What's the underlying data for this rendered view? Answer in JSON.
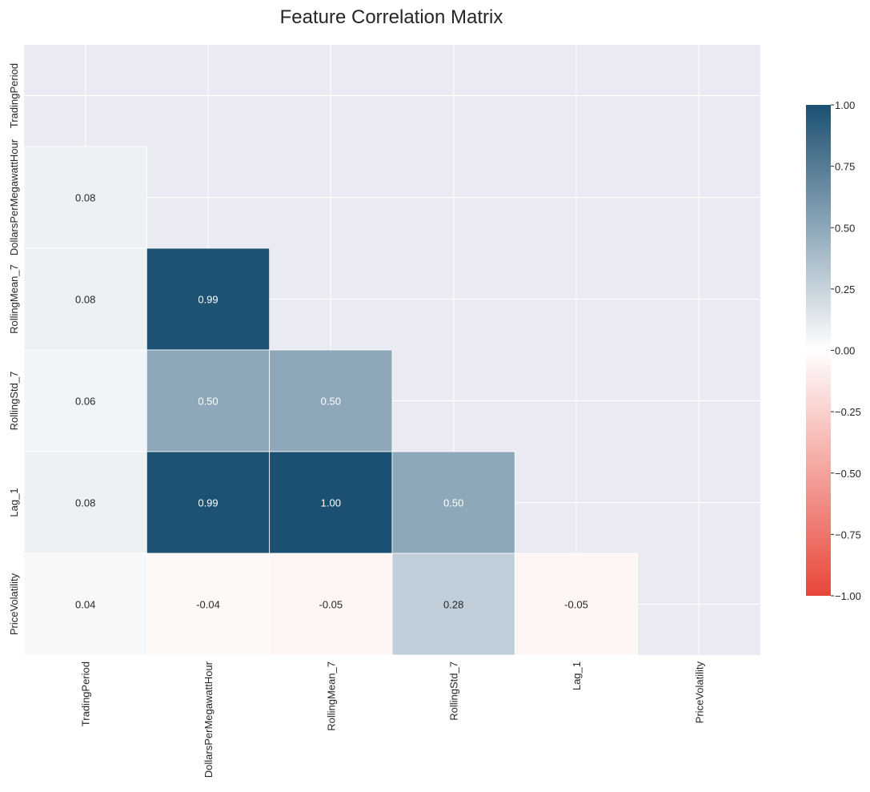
{
  "chart_data": {
    "type": "heatmap",
    "title": "Feature Correlation Matrix",
    "variables": [
      "TradingPeriod",
      "DollarsPerMegawattHour",
      "RollingMean_7",
      "RollingStd_7",
      "Lag_1",
      "PriceVolatility"
    ],
    "mask": "upper-triangle-including-diagonal",
    "cells": [
      {
        "row": "DollarsPerMegawattHour",
        "col": "TradingPeriod",
        "value": 0.08,
        "label": "0.08"
      },
      {
        "row": "RollingMean_7",
        "col": "TradingPeriod",
        "value": 0.08,
        "label": "0.08"
      },
      {
        "row": "RollingMean_7",
        "col": "DollarsPerMegawattHour",
        "value": 0.99,
        "label": "0.99"
      },
      {
        "row": "RollingStd_7",
        "col": "TradingPeriod",
        "value": 0.06,
        "label": "0.06"
      },
      {
        "row": "RollingStd_7",
        "col": "DollarsPerMegawattHour",
        "value": 0.5,
        "label": "0.50"
      },
      {
        "row": "RollingStd_7",
        "col": "RollingMean_7",
        "value": 0.5,
        "label": "0.50"
      },
      {
        "row": "Lag_1",
        "col": "TradingPeriod",
        "value": 0.08,
        "label": "0.08"
      },
      {
        "row": "Lag_1",
        "col": "DollarsPerMegawattHour",
        "value": 0.99,
        "label": "0.99"
      },
      {
        "row": "Lag_1",
        "col": "RollingMean_7",
        "value": 1.0,
        "label": "1.00"
      },
      {
        "row": "Lag_1",
        "col": "RollingStd_7",
        "value": 0.5,
        "label": "0.50"
      },
      {
        "row": "PriceVolatility",
        "col": "TradingPeriod",
        "value": 0.04,
        "label": "0.04"
      },
      {
        "row": "PriceVolatility",
        "col": "DollarsPerMegawattHour",
        "value": -0.04,
        "label": "-0.04"
      },
      {
        "row": "PriceVolatility",
        "col": "RollingMean_7",
        "value": -0.05,
        "label": "-0.05"
      },
      {
        "row": "PriceVolatility",
        "col": "RollingStd_7",
        "value": 0.28,
        "label": "0.28"
      },
      {
        "row": "PriceVolatility",
        "col": "Lag_1",
        "value": -0.05,
        "label": "-0.05"
      }
    ],
    "colorbar": {
      "range": [
        -1,
        1
      ],
      "ticks": [
        "1.00",
        "0.75",
        "0.50",
        "0.25",
        "0.00",
        "−0.25",
        "−0.50",
        "−0.75",
        "−1.00"
      ],
      "colors": {
        "negative": "#e8463a",
        "neutral": "#ffffff",
        "positive": "#1c5072"
      }
    },
    "background_color": "#eaeaf2",
    "grid": true
  }
}
